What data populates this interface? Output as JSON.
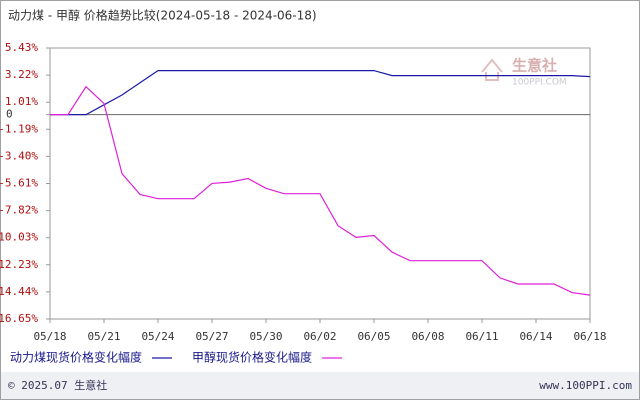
{
  "chart_data": {
    "type": "line",
    "title": "动力煤 - 甲醇 价格趋势比较(2024-05-18 - 2024-06-18)",
    "categories": [
      "05/18",
      null,
      null,
      "05/21",
      null,
      null,
      "05/24",
      null,
      null,
      "05/27",
      null,
      null,
      "05/30",
      null,
      null,
      "06/02",
      null,
      null,
      "06/05",
      null,
      null,
      "06/08",
      null,
      null,
      "06/11",
      null,
      null,
      "06/14",
      null,
      null,
      "06/18"
    ],
    "series": [
      {
        "name": "动力煤现货价格变化幅度",
        "color": "#1a1aa8",
        "values": [
          0,
          0,
          0,
          0.8,
          1.6,
          2.6,
          3.59,
          3.59,
          3.59,
          3.59,
          3.59,
          3.59,
          3.59,
          3.59,
          3.59,
          3.59,
          3.59,
          3.59,
          3.59,
          3.18,
          3.18,
          3.18,
          3.18,
          3.18,
          3.18,
          3.18,
          3.18,
          3.18,
          3.18,
          3.18,
          3.1
        ]
      },
      {
        "name": "甲醇现货价格变化幅度",
        "color": "#e020d8",
        "values": [
          0,
          0,
          2.28,
          0.9,
          -4.8,
          -6.5,
          -6.85,
          -6.85,
          -6.85,
          -5.6,
          -5.5,
          -5.2,
          -6.0,
          -6.44,
          -6.44,
          -6.44,
          -9.05,
          -10.0,
          -9.85,
          -11.2,
          -11.9,
          -11.9,
          -11.9,
          -11.9,
          -11.9,
          -13.3,
          -13.8,
          -13.8,
          -13.8,
          -14.5,
          -14.7
        ]
      }
    ],
    "ylim": [
      -16.65,
      5.43
    ],
    "yticks": [
      {
        "value": 5.43,
        "label": "5.43%"
      },
      {
        "value": 3.22,
        "label": "3.22%"
      },
      {
        "value": 1.01,
        "label": "1.01%"
      },
      0,
      {
        "value": -1.19,
        "label": "-1.19%"
      },
      {
        "value": -3.4,
        "label": "-3.40%"
      },
      {
        "value": -5.61,
        "label": "-5.61%"
      },
      {
        "value": -7.82,
        "label": "-7.82%"
      },
      {
        "value": -10.03,
        "label": "-10.03%"
      },
      {
        "value": -12.23,
        "label": "-12.23%"
      },
      {
        "value": -14.44,
        "label": "-14.44%"
      },
      {
        "value": -16.65,
        "label": "-16.65%"
      }
    ],
    "grid": false,
    "zero_line": true,
    "legend": "bottom"
  },
  "watermark": {
    "brand": "生意社",
    "site": "100PPI.COM"
  },
  "footer": {
    "left": "© 2025.07 生意社",
    "right": "www.100PPI.com"
  }
}
